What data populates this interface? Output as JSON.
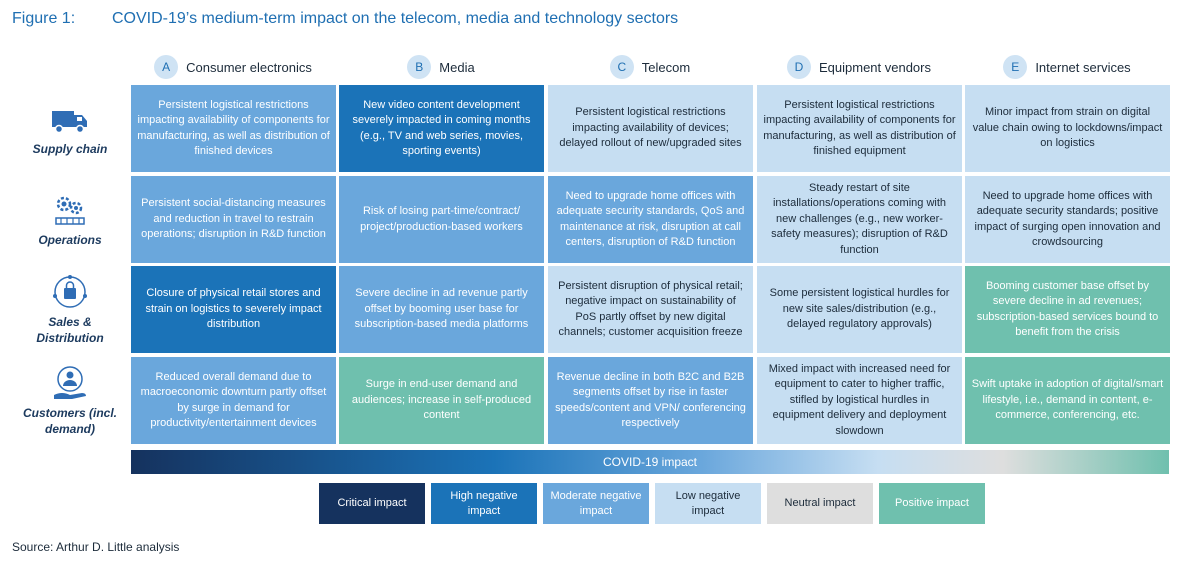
{
  "figure": {
    "number": "Figure 1:",
    "title": "COVID-19’s medium-term impact on the telecom, media and technology sectors"
  },
  "columns": [
    {
      "letter": "A",
      "label": "Consumer electronics"
    },
    {
      "letter": "B",
      "label": "Media"
    },
    {
      "letter": "C",
      "label": "Telecom"
    },
    {
      "letter": "D",
      "label": "Equipment vendors"
    },
    {
      "letter": "E",
      "label": "Internet services"
    }
  ],
  "rows": [
    {
      "label": "Supply chain",
      "icon": "truck-icon",
      "cells": [
        {
          "impact": "moderate",
          "text": "Persistent logistical restrictions impacting availability of components for manufacturing, as well as distribution of finished devices"
        },
        {
          "impact": "high",
          "text": "New video content development severely impacted in coming months (e.g., TV and web series, movies, sporting events)"
        },
        {
          "impact": "low",
          "text": "Persistent logistical restrictions impacting availability of devices; delayed rollout of new/upgraded sites"
        },
        {
          "impact": "low",
          "text": "Persistent logistical restrictions impacting availability of components for manufacturing, as well as distribution of finished equipment"
        },
        {
          "impact": "low",
          "text": "Minor impact from strain on digital value chain owing to lockdowns/impact on logistics"
        }
      ]
    },
    {
      "label": "Operations",
      "icon": "gears-icon",
      "cells": [
        {
          "impact": "moderate",
          "text": "Persistent social-distancing measures and reduction in travel to restrain operations; disruption in R&D function"
        },
        {
          "impact": "moderate",
          "text": "Risk of losing part-time/contract/ project/production-based workers"
        },
        {
          "impact": "moderate",
          "text": "Need to upgrade home offices with adequate security standards, QoS and maintenance at risk, disruption at call centers, disruption of R&D function"
        },
        {
          "impact": "low",
          "text": "Steady restart of site installations/operations coming with new challenges (e.g., new worker-safety measures); disruption of R&D function"
        },
        {
          "impact": "low",
          "text": "Need to upgrade home offices with adequate security standards; positive impact of surging open innovation and crowdsourcing"
        }
      ]
    },
    {
      "label": "Sales & Distribution",
      "icon": "shopping-bag-icon",
      "cells": [
        {
          "impact": "high",
          "text": "Closure of physical retail stores and strain on logistics to severely impact distribution"
        },
        {
          "impact": "moderate",
          "text": "Severe decline in ad revenue partly offset by booming user base for subscription-based media platforms"
        },
        {
          "impact": "low",
          "text": "Persistent disruption of physical retail; negative impact on sustainability of PoS partly offset by new digital channels; customer acquisition freeze"
        },
        {
          "impact": "low",
          "text": "Some persistent logistical hurdles for new site sales/distribution (e.g., delayed regulatory approvals)"
        },
        {
          "impact": "positive",
          "text": "Booming customer base offset by severe decline in ad revenues; subscription-based services bound to benefit from the crisis"
        }
      ]
    },
    {
      "label": "Customers (incl. demand)",
      "icon": "customer-hand-icon",
      "cells": [
        {
          "impact": "moderate",
          "text": "Reduced overall demand due to macroeconomic downturn partly offset by surge in demand for productivity/entertainment devices"
        },
        {
          "impact": "positive",
          "text": "Surge in end-user demand and audiences; increase in self-produced content"
        },
        {
          "impact": "moderate",
          "text": "Revenue decline in both B2C and B2B segments offset by rise in faster speeds/content and VPN/ conferencing respectively"
        },
        {
          "impact": "low",
          "text": "Mixed impact with increased need for equipment to cater to higher traffic, stifled by logistical hurdles in equipment delivery and deployment slowdown"
        },
        {
          "impact": "positive",
          "text": "Swift uptake in adoption of digital/smart lifestyle, i.e., demand in content, e-commerce, conferencing, etc."
        }
      ]
    }
  ],
  "impact_bar": {
    "label": "COVID-19 impact"
  },
  "legend": [
    {
      "key": "critical",
      "label": "Critical impact"
    },
    {
      "key": "high",
      "label": "High negative impact"
    },
    {
      "key": "moderate",
      "label": "Moderate negative impact"
    },
    {
      "key": "low",
      "label": "Low negative impact"
    },
    {
      "key": "neutral",
      "label": "Neutral impact"
    },
    {
      "key": "positive",
      "label": "Positive impact"
    }
  ],
  "colors": {
    "critical": "#15325e",
    "high": "#1b73b8",
    "moderate": "#6aa7dc",
    "low": "#c6def2",
    "neutral": "#dedede",
    "positive": "#6fc0ae",
    "title": "#1f6fb2"
  },
  "source": "Source: Arthur D. Little analysis"
}
